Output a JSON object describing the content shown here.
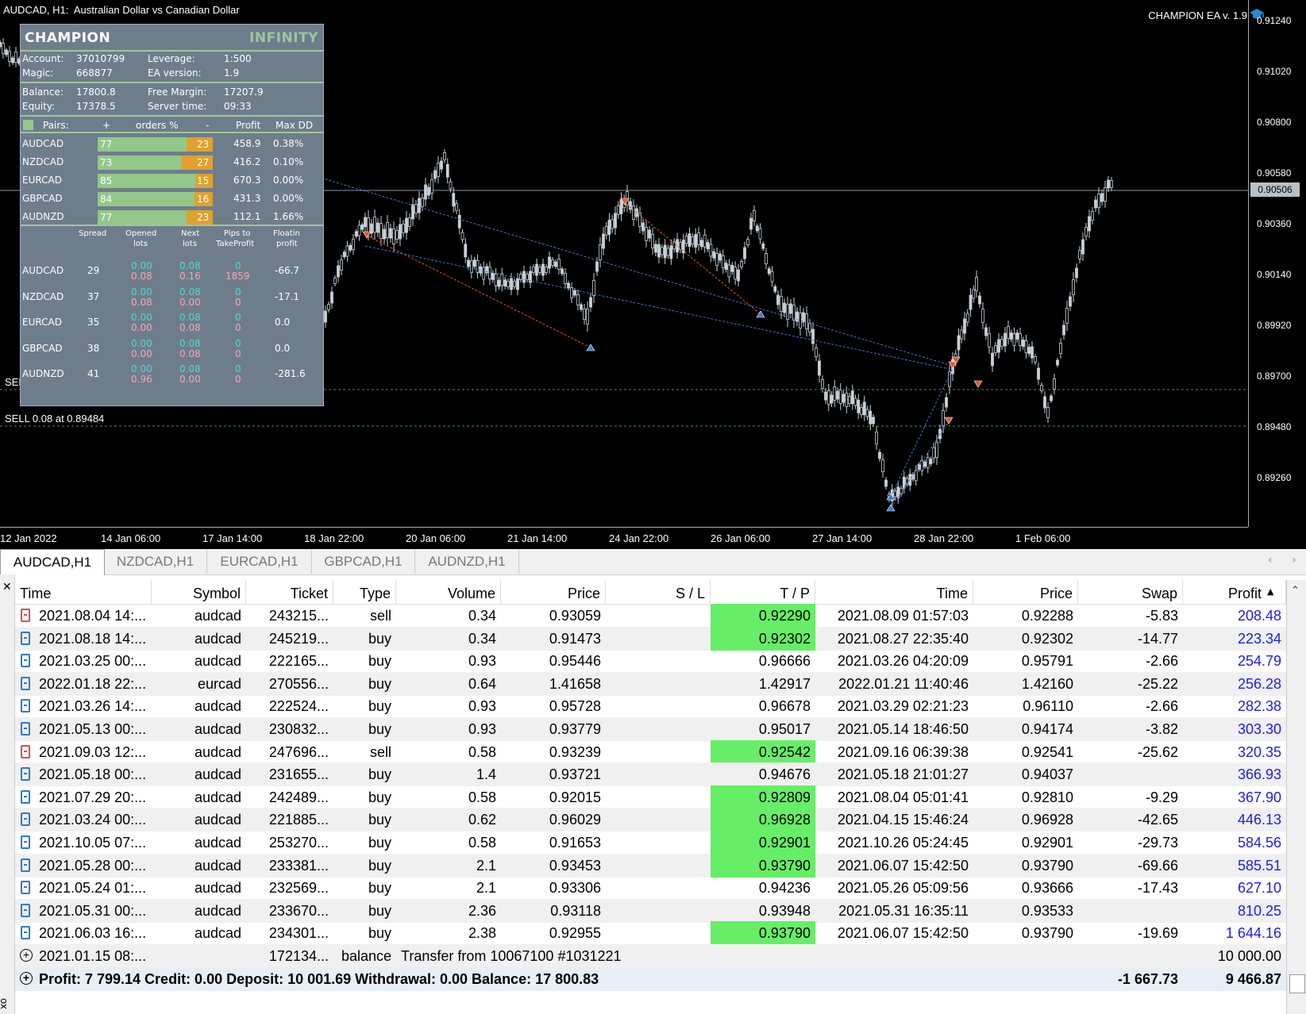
{
  "chart": {
    "title": "AUDCAD, H1:  Australian Dollar vs Canadian Dollar",
    "ea_label": "CHAMPION EA v. 1.9",
    "price_labels": [
      "0.91240",
      "0.91020",
      "0.90800",
      "0.90580",
      "0.90360",
      "0.90140",
      "0.89920",
      "0.89700",
      "0.89480",
      "0.89260"
    ],
    "current_price": "0.90506",
    "time_labels": [
      "12 Jan 2022",
      "14 Jan 06:00",
      "17 Jan 14:00",
      "18 Jan 22:00",
      "20 Jan 06:00",
      "21 Jan 14:00",
      "24 Jan 22:00",
      "26 Jan 06:00",
      "27 Jan 14:00",
      "28 Jan 22:00",
      "1 Feb 06:00"
    ],
    "sell_label_1": "SELL 0.08 at 0.89484",
    "sell_label_2": "SEL"
  },
  "panel": {
    "brand": "CHAMPION",
    "brand2": "INFINITY",
    "account_label": "Account:",
    "account": "37010799",
    "magic_label": "Magic:",
    "magic": "668877",
    "leverage_label": "Leverage:",
    "leverage": "1:500",
    "ea_version_label": "EA version:",
    "ea_version": "1.9",
    "balance_label": "Balance:",
    "balance": "17800.8",
    "equity_label": "Equity:",
    "equity": "17378.5",
    "free_margin_label": "Free Margin:",
    "free_margin": "17207.9",
    "server_time_label": "Server time:",
    "server_time": "09:33",
    "pairs_header": {
      "pairs": "Pairs:",
      "plus": "+",
      "orders": "orders %",
      "minus": "-",
      "profit": "Profit",
      "maxdd": "Max DD"
    },
    "pairs": [
      {
        "name": "AUDCAD",
        "plus": "77",
        "minus": "23",
        "profit": "458.9",
        "maxdd": "0.38%"
      },
      {
        "name": "NZDCAD",
        "plus": "73",
        "minus": "27",
        "profit": "416.2",
        "maxdd": "0.10%"
      },
      {
        "name": "EURCAD",
        "plus": "85",
        "minus": "15",
        "profit": "670.3",
        "maxdd": "0.00%"
      },
      {
        "name": "GBPCAD",
        "plus": "84",
        "minus": "16",
        "profit": "431.3",
        "maxdd": "0.00%"
      },
      {
        "name": "AUDNZD",
        "plus": "77",
        "minus": "23",
        "profit": "112.1",
        "maxdd": "1.66%"
      }
    ],
    "detail_header": {
      "spread": "Spread",
      "opened_1": "Opened",
      "opened_2": "lots",
      "next_1": "Next",
      "next_2": "lots",
      "pips_1": "Pips to",
      "pips_2": "TakeProfit",
      "float_1": "Floatin",
      "float_2": "profit"
    },
    "details": [
      {
        "name": "AUDCAD",
        "spread": "29",
        "op_top": "0.00",
        "op_bot": "0.08",
        "nx_top": "0.08",
        "nx_bot": "0.16",
        "pp_top": "0",
        "pp_bot": "1859",
        "float": "-66.7"
      },
      {
        "name": "NZDCAD",
        "spread": "37",
        "op_top": "0.00",
        "op_bot": "0.08",
        "nx_top": "0.08",
        "nx_bot": "0.00",
        "pp_top": "0",
        "pp_bot": "0",
        "float": "-17.1"
      },
      {
        "name": "EURCAD",
        "spread": "35",
        "op_top": "0.00",
        "op_bot": "0.00",
        "nx_top": "0.08",
        "nx_bot": "0.08",
        "pp_top": "0",
        "pp_bot": "0",
        "float": "0.0"
      },
      {
        "name": "GBPCAD",
        "spread": "38",
        "op_top": "0.00",
        "op_bot": "0.00",
        "nx_top": "0.08",
        "nx_bot": "0.08",
        "pp_top": "0",
        "pp_bot": "0",
        "float": "0.0"
      },
      {
        "name": "AUDNZD",
        "spread": "41",
        "op_top": "0.00",
        "op_bot": "0.96",
        "nx_top": "0.08",
        "nx_bot": "0.00",
        "pp_top": "0",
        "pp_bot": "0",
        "float": "-281.6"
      }
    ]
  },
  "tabs": [
    "AUDCAD,H1",
    "NZDCAD,H1",
    "EURCAD,H1",
    "GBPCAD,H1",
    "AUDNZD,H1"
  ],
  "table": {
    "headers": [
      "Time",
      "Symbol",
      "Ticket",
      "Type",
      "Volume",
      "Price",
      "S / L",
      "T / P",
      "Time",
      "Price",
      "Swap",
      "Profit"
    ],
    "rows": [
      {
        "time": "2021.08.04 14:...",
        "symbol": "audcad",
        "ticket": "243215...",
        "type": "sell",
        "volume": "0.34",
        "price": "0.93059",
        "sl": "",
        "tp": "0.92290",
        "tp_hit": true,
        "ctime": "2021.08.09 01:57:03",
        "cprice": "0.92288",
        "swap": "-5.83",
        "profit": "208.48"
      },
      {
        "time": "2021.08.18 14:...",
        "symbol": "audcad",
        "ticket": "245219...",
        "type": "buy",
        "volume": "0.34",
        "price": "0.91473",
        "sl": "",
        "tp": "0.92302",
        "tp_hit": true,
        "ctime": "2021.08.27 22:35:40",
        "cprice": "0.92302",
        "swap": "-14.77",
        "profit": "223.34"
      },
      {
        "time": "2021.03.25 00:...",
        "symbol": "audcad",
        "ticket": "222165...",
        "type": "buy",
        "volume": "0.93",
        "price": "0.95446",
        "sl": "",
        "tp": "0.96666",
        "tp_hit": false,
        "ctime": "2021.03.26 04:20:09",
        "cprice": "0.95791",
        "swap": "-2.66",
        "profit": "254.79"
      },
      {
        "time": "2022.01.18 22:...",
        "symbol": "eurcad",
        "ticket": "270556...",
        "type": "buy",
        "volume": "0.64",
        "price": "1.41658",
        "sl": "",
        "tp": "1.42917",
        "tp_hit": false,
        "ctime": "2022.01.21 11:40:46",
        "cprice": "1.42160",
        "swap": "-25.22",
        "profit": "256.28"
      },
      {
        "time": "2021.03.26 14:...",
        "symbol": "audcad",
        "ticket": "222524...",
        "type": "buy",
        "volume": "0.93",
        "price": "0.95728",
        "sl": "",
        "tp": "0.96678",
        "tp_hit": false,
        "ctime": "2021.03.29 02:21:23",
        "cprice": "0.96110",
        "swap": "-2.66",
        "profit": "282.38"
      },
      {
        "time": "2021.05.13 00:...",
        "symbol": "audcad",
        "ticket": "230832...",
        "type": "buy",
        "volume": "0.93",
        "price": "0.93779",
        "sl": "",
        "tp": "0.95017",
        "tp_hit": false,
        "ctime": "2021.05.14 18:46:50",
        "cprice": "0.94174",
        "swap": "-3.82",
        "profit": "303.30"
      },
      {
        "time": "2021.09.03 12:...",
        "symbol": "audcad",
        "ticket": "247696...",
        "type": "sell",
        "volume": "0.58",
        "price": "0.93239",
        "sl": "",
        "tp": "0.92542",
        "tp_hit": true,
        "ctime": "2021.09.16 06:39:38",
        "cprice": "0.92541",
        "swap": "-25.62",
        "profit": "320.35"
      },
      {
        "time": "2021.05.18 00:...",
        "symbol": "audcad",
        "ticket": "231655...",
        "type": "buy",
        "volume": "1.4",
        "price": "0.93721",
        "sl": "",
        "tp": "0.94676",
        "tp_hit": false,
        "ctime": "2021.05.18 21:01:27",
        "cprice": "0.94037",
        "swap": "",
        "profit": "366.93"
      },
      {
        "time": "2021.07.29 20:...",
        "symbol": "audcad",
        "ticket": "242489...",
        "type": "buy",
        "volume": "0.58",
        "price": "0.92015",
        "sl": "",
        "tp": "0.92809",
        "tp_hit": true,
        "ctime": "2021.08.04 05:01:41",
        "cprice": "0.92810",
        "swap": "-9.29",
        "profit": "367.90"
      },
      {
        "time": "2021.03.24 00:...",
        "symbol": "audcad",
        "ticket": "221885...",
        "type": "buy",
        "volume": "0.62",
        "price": "0.96029",
        "sl": "",
        "tp": "0.96928",
        "tp_hit": true,
        "ctime": "2021.04.15 15:46:24",
        "cprice": "0.96928",
        "swap": "-42.65",
        "profit": "446.13"
      },
      {
        "time": "2021.10.05 07:...",
        "symbol": "audcad",
        "ticket": "253270...",
        "type": "buy",
        "volume": "0.58",
        "price": "0.91653",
        "sl": "",
        "tp": "0.92901",
        "tp_hit": true,
        "ctime": "2021.10.26 05:24:45",
        "cprice": "0.92901",
        "swap": "-29.73",
        "profit": "584.56"
      },
      {
        "time": "2021.05.28 00:...",
        "symbol": "audcad",
        "ticket": "233381...",
        "type": "buy",
        "volume": "2.1",
        "price": "0.93453",
        "sl": "",
        "tp": "0.93790",
        "tp_hit": true,
        "ctime": "2021.06.07 15:42:50",
        "cprice": "0.93790",
        "swap": "-69.66",
        "profit": "585.51"
      },
      {
        "time": "2021.05.24 01:...",
        "symbol": "audcad",
        "ticket": "232569...",
        "type": "buy",
        "volume": "2.1",
        "price": "0.93306",
        "sl": "",
        "tp": "0.94236",
        "tp_hit": false,
        "ctime": "2021.05.26 05:09:56",
        "cprice": "0.93666",
        "swap": "-17.43",
        "profit": "627.10"
      },
      {
        "time": "2021.05.31 00:...",
        "symbol": "audcad",
        "ticket": "233670...",
        "type": "buy",
        "volume": "2.36",
        "price": "0.93118",
        "sl": "",
        "tp": "0.93948",
        "tp_hit": false,
        "ctime": "2021.05.31 16:35:11",
        "cprice": "0.93533",
        "swap": "",
        "profit": "810.25"
      },
      {
        "time": "2021.06.03 16:...",
        "symbol": "audcad",
        "ticket": "234301...",
        "type": "buy",
        "volume": "2.38",
        "price": "0.92955",
        "sl": "",
        "tp": "0.93790",
        "tp_hit": true,
        "ctime": "2021.06.07 15:42:50",
        "cprice": "0.93790",
        "swap": "-19.69",
        "profit": "1 644.16"
      }
    ],
    "balance_row": {
      "time": "2021.01.15 08:...",
      "ticket": "172134...",
      "type": "balance",
      "comment": "Transfer from 10067100 #1031221",
      "profit": "10 000.00"
    },
    "summary": {
      "text": "Profit: 7 799.14  Credit: 0.00  Deposit: 10 001.69  Withdrawal: 0.00  Balance: 17 800.83",
      "swap": "-1 667.73",
      "profit": "9 466.87"
    }
  },
  "colors": {
    "buy": "#2a78d6",
    "sell": "#e04a4a",
    "tp_hit": "#66ee66",
    "profit": "#1a1aff",
    "panel": "#6e7d8c",
    "accent": "#9ec79a",
    "orange": "#e0a12e"
  }
}
